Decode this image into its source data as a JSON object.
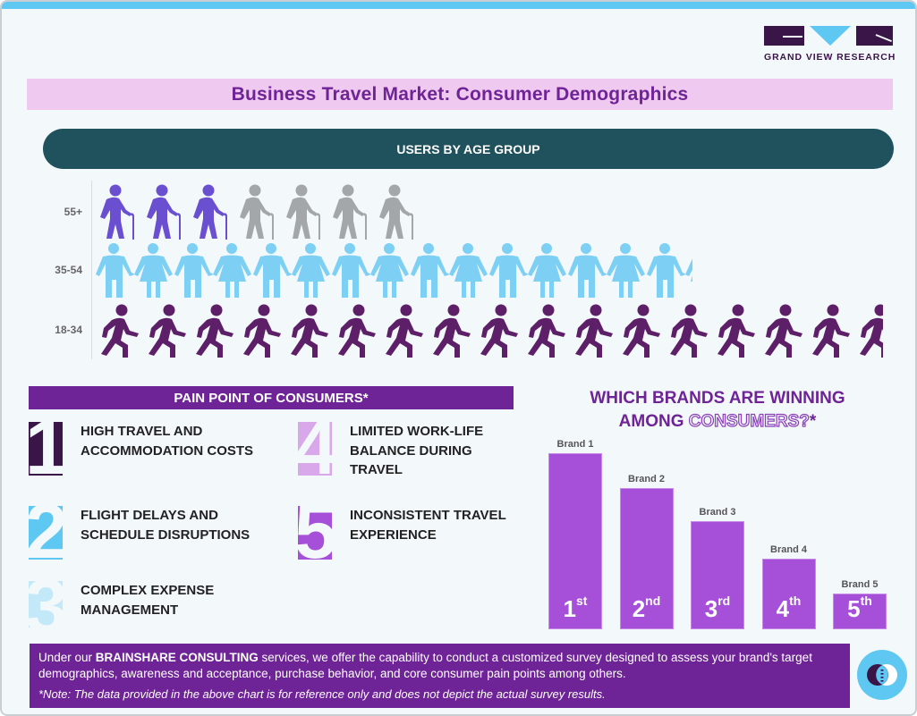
{
  "header": {
    "logo_text": "GRAND VIEW RESEARCH",
    "title": "Business Travel Market: Consumer Demographics"
  },
  "age_section": {
    "heading": "USERS BY AGE GROUP",
    "rows": [
      {
        "label": "55+",
        "icon": "elderly-with-cane-icon",
        "total_icons": 7,
        "filled_icons": 3.5,
        "color": "#6a4fd0",
        "empty_color": "#a4a7aa"
      },
      {
        "label": "35-54",
        "icon": "man-woman-holding-hands-icon",
        "total_icons": 14.6,
        "filled_icons": 14.6,
        "color": "#7dd0f3"
      },
      {
        "label": "18-34",
        "icon": "walking-person-icon",
        "total_icons": 16.5,
        "filled_icons": 16.5,
        "color": "#5c1f68"
      }
    ]
  },
  "pain_points": {
    "heading": "PAIN POINT OF CONSUMERS*",
    "items": [
      {
        "number": "1",
        "text": "HIGH TRAVEL AND ACCOMMODATION COSTS",
        "color": "#3a1548"
      },
      {
        "number": "2",
        "text": "FLIGHT DELAYS AND SCHEDULE DISRUPTIONS",
        "color": "#5ec8f2"
      },
      {
        "number": "3",
        "text": "COMPLEX EXPENSE MANAGEMENT",
        "color": "#c3e9f9"
      },
      {
        "number": "4",
        "text": "LIMITED WORK-LIFE BALANCE DURING TRAVEL",
        "color": "#d8a8ea"
      },
      {
        "number": "5",
        "text": "INCONSISTENT TRAVEL EXPERIENCE",
        "color": "#a64fd8"
      }
    ]
  },
  "brands": {
    "title_line1": "WHICH BRANDS ARE WINNING",
    "title_line2_plain": "AMONG ",
    "title_line2_outline": "CONSUMERS?",
    "title_line2_suffix": "*"
  },
  "chart_data": [
    {
      "type": "bar",
      "title": "Which Brands Are Winning Among Consumers?*",
      "categories": [
        "Brand 1",
        "Brand 2",
        "Brand 3",
        "Brand 4",
        "Brand 5"
      ],
      "values": [
        197,
        158,
        121,
        79,
        40
      ],
      "rank_labels": [
        {
          "num": "1",
          "suffix": "st"
        },
        {
          "num": "2",
          "suffix": "nd"
        },
        {
          "num": "3",
          "suffix": "rd"
        },
        {
          "num": "4",
          "suffix": "th"
        },
        {
          "num": "5",
          "suffix": "th"
        }
      ],
      "xlabel": "",
      "ylabel": "",
      "bar_color": "#a64fd8",
      "grid": false,
      "note": "values are relative bar heights in pixels; no axis shown"
    },
    {
      "type": "pictograph",
      "title": "Users by Age Group",
      "categories": [
        "55+",
        "35-54",
        "18-34"
      ],
      "values": [
        3.5,
        14.6,
        16.5
      ],
      "unit": "icons"
    }
  ],
  "footer": {
    "text_prefix": "Under our ",
    "text_bold": "BRAINSHARE CONSULTING",
    "text_suffix": " services, we offer the capability to conduct a customized survey designed to assess your brand's target demographics, awareness and acceptance, purchase behavior, and core consumer pain points among others.",
    "note": "*Note: The data provided in the above chart is for reference only and does not depict the actual survey results."
  }
}
